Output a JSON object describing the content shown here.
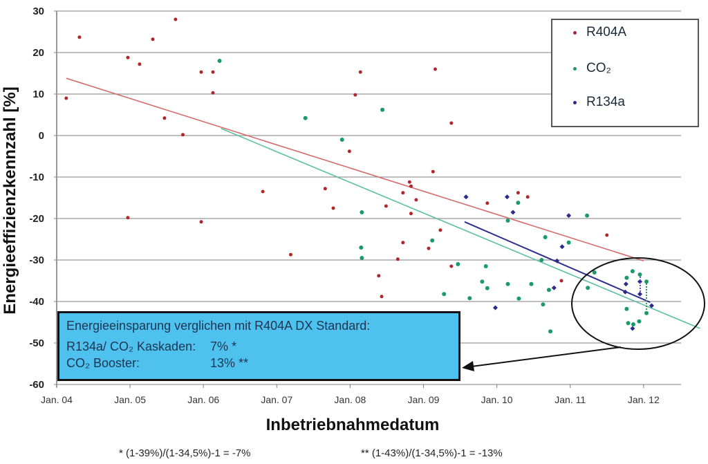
{
  "chart_data": {
    "type": "scatter",
    "title": "",
    "xlabel": "Inbetriebnahmedatum",
    "ylabel": "Energieeffizienzkennzahl  [%]",
    "xlim": [
      2004,
      2012.75
    ],
    "ylim": [
      -60,
      30
    ],
    "grid": true,
    "legend_position": "top-right",
    "x_ticks": [
      {
        "value": 2004,
        "label": "Jan. 04"
      },
      {
        "value": 2005,
        "label": "Jan. 05"
      },
      {
        "value": 2006,
        "label": "Jan. 06"
      },
      {
        "value": 2007,
        "label": "Jan. 07"
      },
      {
        "value": 2008,
        "label": "Jan. 08"
      },
      {
        "value": 2009,
        "label": "Jan. 09"
      },
      {
        "value": 2010,
        "label": "Jan. 10"
      },
      {
        "value": 2011,
        "label": "Jan. 11"
      },
      {
        "value": 2012,
        "label": "Jan. 12"
      }
    ],
    "y_ticks": [
      30,
      20,
      10,
      0,
      -10,
      -20,
      -30,
      -40,
      -50,
      -60
    ],
    "series": [
      {
        "name": "R404A",
        "color": "#b0262a",
        "points": [
          [
            2004.13,
            9
          ],
          [
            2004.31,
            23.7
          ],
          [
            2004.97,
            18.8
          ],
          [
            2005.13,
            17.2
          ],
          [
            2005.31,
            23.2
          ],
          [
            2005.62,
            28
          ],
          [
            2005.47,
            4.2
          ],
          [
            2005.72,
            0.2
          ],
          [
            2005.97,
            15.3
          ],
          [
            2006.13,
            15.3
          ],
          [
            2006.13,
            10.3
          ],
          [
            2004.97,
            -19.8
          ],
          [
            2005.97,
            -20.8
          ],
          [
            2006.81,
            -13.5
          ],
          [
            2007.19,
            -28.7
          ],
          [
            2007.66,
            -12.8
          ],
          [
            2007.77,
            -17.5
          ],
          [
            2008.14,
            15.3
          ],
          [
            2008.07,
            9.8
          ],
          [
            2007.99,
            -3.8
          ],
          [
            2009.16,
            16
          ],
          [
            2009.38,
            3
          ],
          [
            2009.13,
            -8.7
          ],
          [
            2008.81,
            -11.2
          ],
          [
            2008.83,
            -12.2
          ],
          [
            2008.72,
            -13.8
          ],
          [
            2008.9,
            -15.5
          ],
          [
            2008.49,
            -17
          ],
          [
            2008.83,
            -18.8
          ],
          [
            2009.23,
            -22.8
          ],
          [
            2008.72,
            -25.8
          ],
          [
            2009.07,
            -27.2
          ],
          [
            2008.65,
            -29.8
          ],
          [
            2009.38,
            -31.5
          ],
          [
            2008.39,
            -33.8
          ],
          [
            2008.43,
            -38.8
          ],
          [
            2009.87,
            -16.3
          ],
          [
            2010.29,
            -13.8
          ],
          [
            2010.42,
            -14.8
          ],
          [
            2011.5,
            -24
          ],
          [
            2010.88,
            -35
          ]
        ],
        "trend": [
          [
            2004.13,
            13.8
          ],
          [
            2012.0,
            -30.2
          ]
        ]
      },
      {
        "name": "CO₂",
        "color": "#1a9a6a",
        "points": [
          [
            2006.22,
            18
          ],
          [
            2007.39,
            4.2
          ],
          [
            2008.44,
            6.2
          ],
          [
            2007.89,
            -1
          ],
          [
            2008.16,
            -18.5
          ],
          [
            2008.15,
            -27
          ],
          [
            2008.16,
            -29.5
          ],
          [
            2009.12,
            -25.3
          ],
          [
            2009.47,
            -31
          ],
          [
            2009.28,
            -38.2
          ],
          [
            2009.63,
            -39.2
          ],
          [
            2009.85,
            -31.5
          ],
          [
            2009.8,
            -35.2
          ],
          [
            2009.87,
            -36.8
          ],
          [
            2010.15,
            -35.8
          ],
          [
            2010.29,
            -16.2
          ],
          [
            2010.15,
            -20.5
          ],
          [
            2010.47,
            -35.8
          ],
          [
            2010.3,
            -39.3
          ],
          [
            2010.66,
            -24.5
          ],
          [
            2010.98,
            -25.8
          ],
          [
            2010.61,
            -30
          ],
          [
            2010.71,
            -37.2
          ],
          [
            2010.63,
            -40.7
          ],
          [
            2010.73,
            -47.2
          ],
          [
            2011.23,
            -19.3
          ],
          [
            2011.33,
            -33
          ],
          [
            2011.24,
            -36.7
          ],
          [
            2011.77,
            -34.3
          ],
          [
            2011.85,
            -32.7
          ],
          [
            2011.95,
            -33.5
          ],
          [
            2012.04,
            -35.2
          ],
          [
            2011.77,
            -41.8
          ],
          [
            2011.79,
            -45.2
          ],
          [
            2011.86,
            -45.5
          ],
          [
            2011.94,
            -44.8
          ],
          [
            2012.04,
            -42.8
          ]
        ],
        "trend": [
          [
            2006.24,
            1.7
          ],
          [
            2012.77,
            -46.5
          ]
        ]
      },
      {
        "name": "R134a",
        "color": "#2a2a8a",
        "points": [
          [
            2009.58,
            -14.8
          ],
          [
            2010.14,
            -14.8
          ],
          [
            2010.22,
            -18.5
          ],
          [
            2010.98,
            -19.3
          ],
          [
            2010.89,
            -26.8
          ],
          [
            2010.82,
            -30.2
          ],
          [
            2010.78,
            -36.7
          ],
          [
            2009.98,
            -41.5
          ],
          [
            2011.76,
            -35.8
          ],
          [
            2011.75,
            -37.7
          ],
          [
            2011.95,
            -35.2
          ],
          [
            2011.95,
            -38.2
          ],
          [
            2012.11,
            -41
          ],
          [
            2011.85,
            -46.5
          ]
        ],
        "trend": [
          [
            2009.56,
            -20.8
          ],
          [
            2012.09,
            -40.2
          ]
        ]
      }
    ],
    "annotation": {
      "title": "Energieeinsparung verglichen mit R404A DX Standard:",
      "rows": [
        {
          "label": "R134a/ CO₂ Kaskaden:",
          "value": "7% *"
        },
        {
          "label": "CO₂ Booster:",
          "value": "13% **"
        }
      ],
      "box_color": "#4fc1ee"
    },
    "footnotes": [
      "* (1-39%)/(1-34,5%)-1 = -7%",
      "** (1-43%)/(1-34,5%)-1 = -13%"
    ]
  }
}
